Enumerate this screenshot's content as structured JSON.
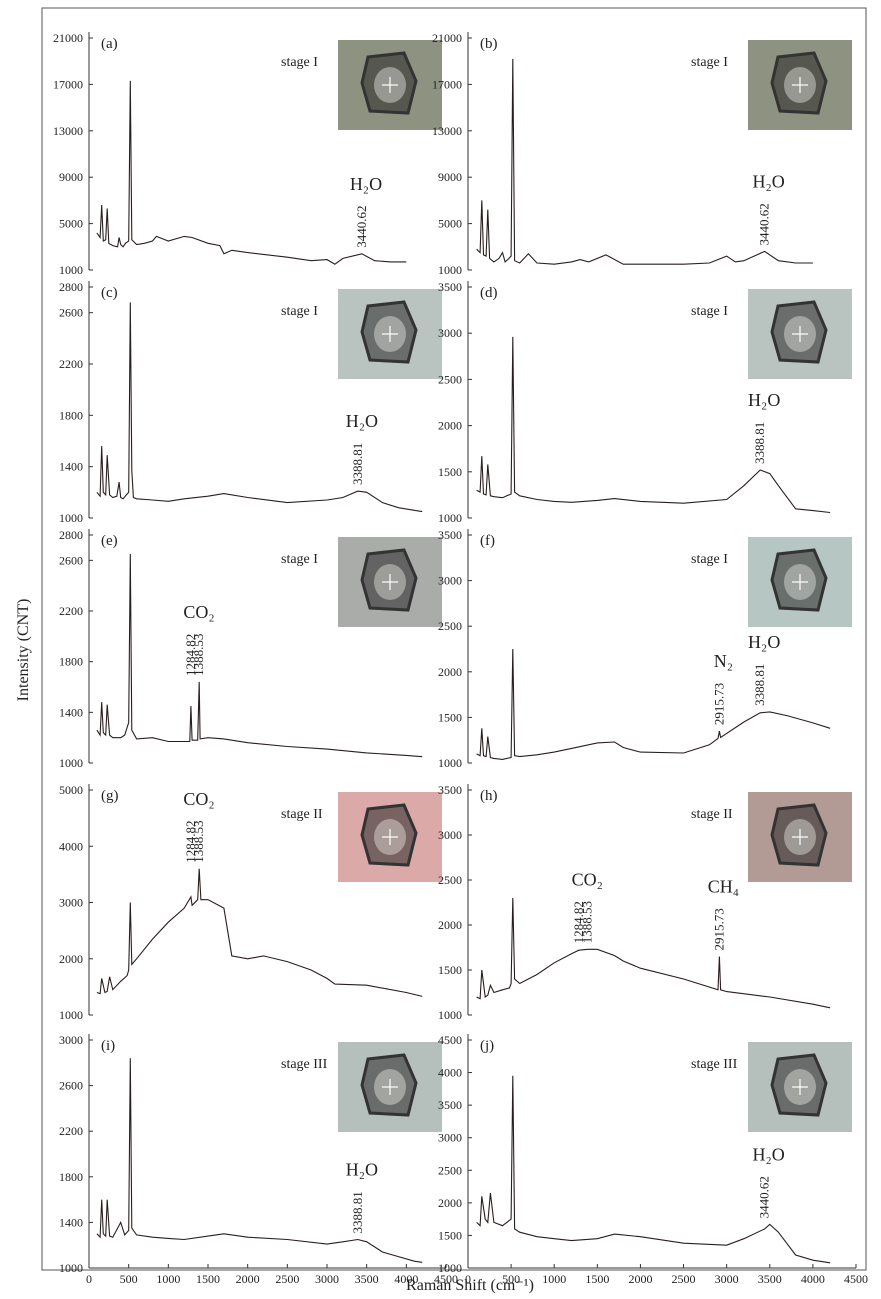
{
  "y_label": "Intensity (CNT)",
  "x_label": "Raman Shift (cm⁻¹)",
  "chart_data": [
    {
      "type": "line",
      "panel_label": "(a)",
      "stage": "stage I",
      "inset_color": "#8e9280",
      "color": "#2b1d1d",
      "xlim": [
        0,
        4500
      ],
      "ylim": [
        1000,
        21000
      ],
      "yticks": [
        1000,
        5000,
        9000,
        13000,
        17000,
        21000
      ],
      "x": [
        100,
        140,
        160,
        180,
        210,
        230,
        250,
        300,
        360,
        380,
        400,
        430,
        460,
        500,
        520,
        540,
        600,
        700,
        800,
        850,
        1000,
        1200,
        1300,
        1500,
        1650,
        1700,
        1800,
        2000,
        2500,
        2800,
        3000,
        3100,
        3200,
        3440,
        3600,
        3800,
        4000
      ],
      "values": [
        4200,
        3800,
        6600,
        3500,
        3600,
        6300,
        3300,
        3100,
        3000,
        3800,
        3200,
        3000,
        3300,
        3500,
        17300,
        3600,
        3200,
        3300,
        3500,
        3900,
        3500,
        3900,
        3800,
        3300,
        3100,
        2400,
        2700,
        2500,
        2100,
        1800,
        1900,
        1500,
        2000,
        2400,
        1800,
        1700,
        1700
      ],
      "annotations": [
        {
          "text": "H₂O",
          "peaks": [
            3440.62
          ]
        }
      ]
    },
    {
      "type": "line",
      "panel_label": "(b)",
      "stage": "stage I",
      "inset_color": "#8e9280",
      "color": "#2b1d1d",
      "xlim": [
        0,
        4500
      ],
      "ylim": [
        1000,
        21000
      ],
      "yticks": [
        1000,
        5000,
        9000,
        13000,
        17000,
        21000
      ],
      "x": [
        100,
        140,
        160,
        180,
        210,
        230,
        250,
        300,
        360,
        400,
        430,
        460,
        500,
        520,
        540,
        600,
        700,
        800,
        1000,
        1200,
        1300,
        1400,
        1600,
        1800,
        2000,
        2500,
        2800,
        3000,
        3100,
        3200,
        3440,
        3600,
        3800,
        4000
      ],
      "values": [
        2800,
        2500,
        7000,
        2300,
        2200,
        6200,
        2000,
        1700,
        2000,
        2500,
        1700,
        1900,
        2200,
        19200,
        1800,
        1600,
        2400,
        1600,
        1500,
        1700,
        1900,
        1700,
        2300,
        1500,
        1500,
        1500,
        1600,
        2200,
        1700,
        1800,
        2600,
        1800,
        1600,
        1600
      ],
      "annotations": [
        {
          "text": "H₂O",
          "peaks": [
            3440.62
          ]
        }
      ]
    },
    {
      "type": "line",
      "panel_label": "(c)",
      "stage": "stage I",
      "inset_color": "#b9c4c0",
      "color": "#2b1d1d",
      "xlim": [
        0,
        4500
      ],
      "ylim": [
        1000,
        2800
      ],
      "yticks": [
        1000,
        1400,
        1800,
        2200,
        2600,
        2800
      ],
      "x": [
        100,
        140,
        160,
        180,
        210,
        230,
        260,
        300,
        350,
        380,
        400,
        430,
        470,
        500,
        520,
        540,
        560,
        600,
        800,
        1000,
        1200,
        1500,
        1700,
        2000,
        2500,
        3000,
        3200,
        3388.81,
        3500,
        3700,
        3900,
        4100,
        4200
      ],
      "values": [
        1200,
        1170,
        1560,
        1200,
        1180,
        1490,
        1180,
        1160,
        1170,
        1280,
        1160,
        1150,
        1180,
        1200,
        2680,
        1370,
        1160,
        1150,
        1140,
        1130,
        1150,
        1170,
        1190,
        1160,
        1120,
        1140,
        1160,
        1210,
        1200,
        1120,
        1080,
        1060,
        1050
      ],
      "annotations": [
        {
          "text": "H₂O",
          "peaks": [
            3388.81
          ]
        }
      ]
    },
    {
      "type": "line",
      "panel_label": "(d)",
      "stage": "stage I",
      "inset_color": "#b9c4c0",
      "color": "#2b1d1d",
      "xlim": [
        0,
        4500
      ],
      "ylim": [
        1000,
        3500
      ],
      "yticks": [
        1000,
        1500,
        2000,
        2500,
        3000,
        3500
      ],
      "x": [
        100,
        140,
        160,
        180,
        210,
        230,
        260,
        300,
        400,
        450,
        500,
        520,
        540,
        600,
        800,
        1000,
        1200,
        1500,
        1700,
        2000,
        2500,
        3000,
        3200,
        3388.81,
        3500,
        3600,
        3800,
        4000,
        4200
      ],
      "values": [
        1300,
        1280,
        1670,
        1260,
        1250,
        1580,
        1240,
        1230,
        1220,
        1240,
        1260,
        2960,
        1280,
        1240,
        1200,
        1180,
        1170,
        1190,
        1210,
        1180,
        1160,
        1200,
        1350,
        1520,
        1480,
        1350,
        1100,
        1080,
        1060
      ],
      "annotations": [
        {
          "text": "H₂O",
          "peaks": [
            3388.81
          ]
        }
      ]
    },
    {
      "type": "line",
      "panel_label": "(e)",
      "stage": "stage I",
      "inset_color": "#a9aca8",
      "color": "#2b1d1d",
      "xlim": [
        0,
        4500
      ],
      "ylim": [
        1000,
        2800
      ],
      "yticks": [
        1000,
        1400,
        1800,
        2200,
        2600,
        2800
      ],
      "x": [
        100,
        140,
        160,
        180,
        210,
        230,
        260,
        300,
        400,
        450,
        500,
        520,
        540,
        600,
        800,
        1000,
        1200,
        1270,
        1284.82,
        1300,
        1370,
        1388.53,
        1400,
        1500,
        1700,
        2000,
        2500,
        3000,
        3500,
        4000,
        4200
      ],
      "values": [
        1260,
        1220,
        1480,
        1240,
        1220,
        1460,
        1220,
        1200,
        1200,
        1220,
        1320,
        2650,
        1260,
        1190,
        1200,
        1170,
        1170,
        1170,
        1450,
        1180,
        1180,
        1640,
        1190,
        1200,
        1190,
        1160,
        1130,
        1110,
        1080,
        1060,
        1050
      ],
      "annotations": [
        {
          "text": "CO₂",
          "peaks": [
            1284.82,
            1388.53
          ]
        }
      ]
    },
    {
      "type": "line",
      "panel_label": "(f)",
      "stage": "stage I",
      "inset_color": "#b6c6c2",
      "color": "#2b1d1d",
      "xlim": [
        0,
        4500
      ],
      "ylim": [
        1000,
        3500
      ],
      "yticks": [
        1000,
        1500,
        2000,
        2500,
        3000,
        3500
      ],
      "x": [
        100,
        140,
        160,
        180,
        210,
        230,
        260,
        300,
        400,
        500,
        520,
        540,
        600,
        800,
        1000,
        1200,
        1500,
        1700,
        1800,
        2000,
        2500,
        2800,
        2900,
        2915.73,
        2930,
        3200,
        3388.81,
        3500,
        3700,
        4000,
        4200
      ],
      "values": [
        1100,
        1080,
        1380,
        1080,
        1070,
        1290,
        1060,
        1050,
        1040,
        1060,
        2250,
        1080,
        1070,
        1090,
        1120,
        1160,
        1220,
        1230,
        1170,
        1120,
        1110,
        1200,
        1270,
        1350,
        1280,
        1450,
        1550,
        1560,
        1520,
        1440,
        1380
      ],
      "annotations": [
        {
          "text": "N₂",
          "peaks": [
            2915.73
          ]
        },
        {
          "text": "H₂O",
          "peaks": [
            3388.81
          ]
        }
      ]
    },
    {
      "type": "line",
      "panel_label": "(g)",
      "stage": "stage II",
      "inset_color": "#dba9a8",
      "color": "#2b1d1d",
      "xlim": [
        0,
        4500
      ],
      "ylim": [
        1000,
        5000
      ],
      "yticks": [
        1000,
        2000,
        3000,
        4000,
        5000
      ],
      "x": [
        100,
        140,
        160,
        200,
        230,
        260,
        300,
        400,
        480,
        500,
        520,
        540,
        600,
        800,
        1000,
        1200,
        1284.82,
        1300,
        1370,
        1388.53,
        1410,
        1500,
        1700,
        1800,
        2000,
        2200,
        2500,
        2800,
        3000,
        3100,
        3500,
        4000,
        4200
      ],
      "values": [
        1400,
        1380,
        1650,
        1400,
        1420,
        1680,
        1450,
        1600,
        1700,
        1800,
        3000,
        1900,
        2000,
        2350,
        2650,
        2900,
        3100,
        2950,
        3050,
        3600,
        3050,
        3050,
        2900,
        2050,
        2000,
        2050,
        1950,
        1800,
        1650,
        1550,
        1530,
        1400,
        1330
      ],
      "annotations": [
        {
          "text": "CO₂",
          "peaks": [
            1284.82,
            1388.53
          ]
        }
      ]
    },
    {
      "type": "line",
      "panel_label": "(h)",
      "stage": "stage II",
      "inset_color": "#b29a95",
      "color": "#2b1d1d",
      "xlim": [
        0,
        4500
      ],
      "ylim": [
        1000,
        3500
      ],
      "yticks": [
        1000,
        1500,
        2000,
        2500,
        3000,
        3500
      ],
      "x": [
        100,
        140,
        160,
        200,
        230,
        260,
        300,
        400,
        480,
        500,
        520,
        540,
        600,
        800,
        1000,
        1200,
        1284.82,
        1388.53,
        1500,
        1700,
        1800,
        2000,
        2500,
        2900,
        2915.73,
        2930,
        3000,
        3500,
        4000,
        4200
      ],
      "values": [
        1200,
        1180,
        1500,
        1200,
        1220,
        1330,
        1250,
        1280,
        1300,
        1350,
        2300,
        1400,
        1350,
        1450,
        1580,
        1680,
        1720,
        1730,
        1730,
        1660,
        1600,
        1520,
        1400,
        1280,
        1650,
        1280,
        1260,
        1200,
        1120,
        1080
      ],
      "annotations": [
        {
          "text": "CO₂",
          "peaks": [
            1284.82,
            1388.53
          ]
        },
        {
          "text": "CH₄",
          "peaks": [
            2915.73
          ]
        }
      ]
    },
    {
      "type": "line",
      "panel_label": "(i)",
      "stage": "stage III",
      "inset_color": "#b5c0bd",
      "color": "#2b1d1d",
      "xlim": [
        0,
        4500
      ],
      "ylim": [
        1000,
        3000
      ],
      "yticks": [
        1000,
        1400,
        1800,
        2200,
        2600,
        3000
      ],
      "xticks": [
        0,
        500,
        1000,
        1500,
        2000,
        2500,
        3000,
        3500,
        4000,
        4500
      ],
      "x": [
        100,
        140,
        160,
        180,
        210,
        230,
        260,
        300,
        400,
        450,
        500,
        520,
        540,
        600,
        800,
        1000,
        1200,
        1500,
        1700,
        2000,
        2500,
        3000,
        3200,
        3388.81,
        3500,
        3700,
        3900,
        4100,
        4200
      ],
      "values": [
        1300,
        1270,
        1600,
        1300,
        1280,
        1600,
        1280,
        1270,
        1400,
        1290,
        1330,
        2840,
        1350,
        1290,
        1270,
        1260,
        1250,
        1280,
        1300,
        1270,
        1250,
        1210,
        1230,
        1250,
        1230,
        1140,
        1100,
        1060,
        1050
      ],
      "annotations": [
        {
          "text": "H₂O",
          "peaks": [
            3388.81
          ]
        }
      ]
    },
    {
      "type": "line",
      "panel_label": "(j)",
      "stage": "stage III",
      "inset_color": "#b5c0bd",
      "color": "#2b1d1d",
      "xlim": [
        0,
        4500
      ],
      "ylim": [
        1000,
        4500
      ],
      "yticks": [
        1000,
        1500,
        2000,
        2500,
        3000,
        3500,
        4000,
        4500
      ],
      "xticks": [
        0,
        500,
        1000,
        1500,
        2000,
        2500,
        3000,
        3500,
        4000,
        4500
      ],
      "x": [
        100,
        140,
        160,
        200,
        230,
        260,
        300,
        400,
        500,
        520,
        540,
        600,
        800,
        1000,
        1200,
        1500,
        1700,
        2000,
        2500,
        3000,
        3200,
        3440.62,
        3500,
        3600,
        3800,
        4000,
        4200
      ],
      "values": [
        1700,
        1650,
        2100,
        1750,
        1700,
        2150,
        1700,
        1650,
        1750,
        3950,
        1600,
        1550,
        1480,
        1450,
        1420,
        1450,
        1520,
        1480,
        1380,
        1350,
        1450,
        1600,
        1670,
        1550,
        1200,
        1120,
        1080
      ],
      "annotations": [
        {
          "text": "H₂O",
          "peaks": [
            3440.62
          ]
        }
      ]
    }
  ]
}
